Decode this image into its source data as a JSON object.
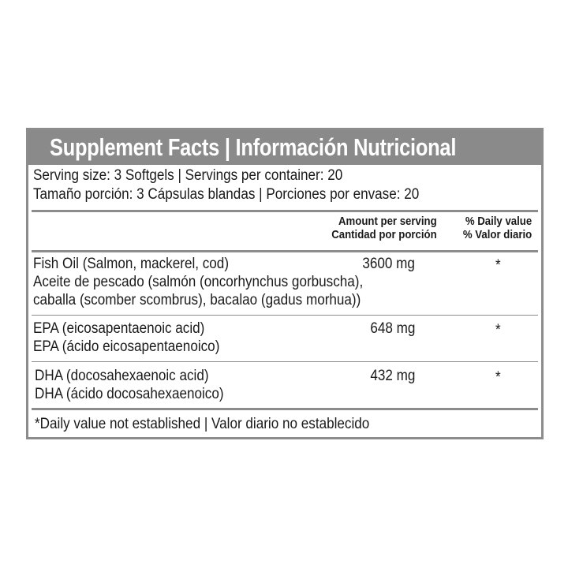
{
  "title": "Supplement Facts | Información Nutricional",
  "serving": {
    "line_en": "Serving size: 3 Softgels | Servings per container: 20",
    "line_es": "Tamaño porción: 3 Cápsulas blandas | Porciones por envase: 20"
  },
  "columns": {
    "amount_en": "Amount per serving",
    "amount_es": "Cantidad por porción",
    "dv_en": "% Daily value",
    "dv_es": "% Valor diario"
  },
  "rows": [
    {
      "lines": [
        "Fish Oil (Salmon, mackerel, cod)",
        "Aceite de pescado (salmón (oncorhynchus gorbuscha),",
        "caballa (scomber scombrus), bacalao (gadus morhua))"
      ],
      "amount": "3600 mg",
      "dv": "*"
    },
    {
      "lines": [
        "EPA (eicosapentaenoic acid)",
        "EPA (ácido eicosapentaenoico)"
      ],
      "amount": "648 mg",
      "dv": "*"
    },
    {
      "lines": [
        "DHA (docosahexaenoic acid)",
        "DHA (ácido docosahexaenoico)"
      ],
      "amount": "432 mg",
      "dv": "*"
    }
  ],
  "footnote": "*Daily value not established | Valor diario no establecido",
  "colors": {
    "header": "#8a8a8a",
    "border": "#8c8c8c"
  }
}
